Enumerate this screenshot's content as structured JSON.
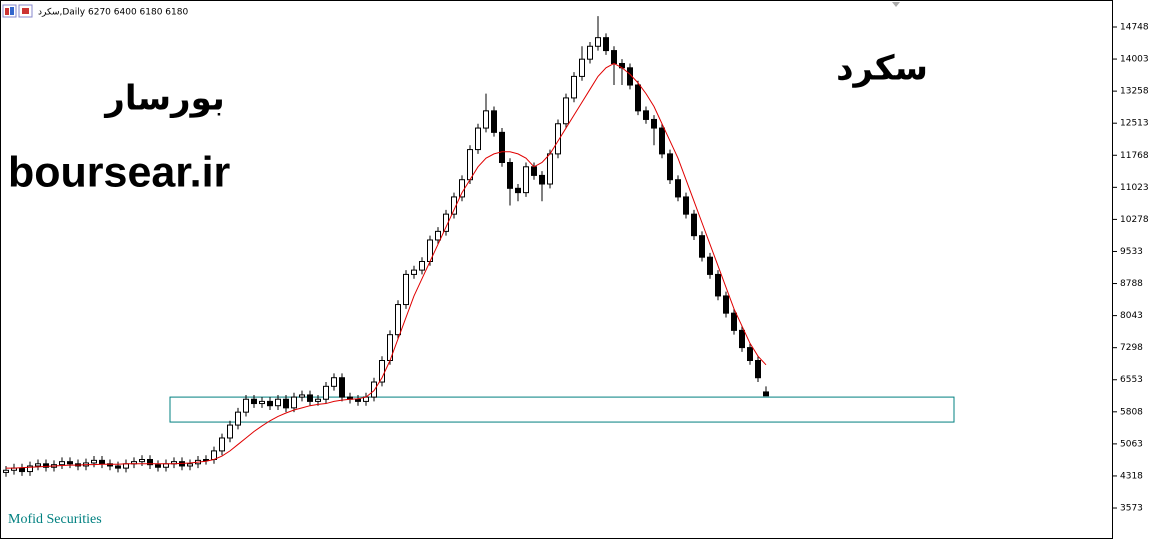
{
  "chart_data": {
    "type": "candlestick",
    "title": "سکرد,Daily  6270 6400 6180 6180",
    "watermarks": [
      "بورسار",
      "boursear.ir",
      "سکرد"
    ],
    "footer": "Mofid Securities",
    "ylim": [
      2830,
      15375
    ],
    "yticks": [
      3573,
      4318,
      5063,
      5808,
      6553,
      7298,
      8043,
      8788,
      9533,
      10278,
      11023,
      11768,
      12513,
      13258,
      14003,
      14748
    ],
    "open": [
      4400,
      4450,
      4500,
      4420,
      4550,
      4600,
      4520,
      4580,
      4650,
      4600,
      4550,
      4620,
      4680,
      4600,
      4550,
      4500,
      4600,
      4650,
      4700,
      4580,
      4520,
      4600,
      4650,
      4550,
      4600,
      4680,
      4700,
      4900,
      5200,
      5500,
      5800,
      6100,
      6000,
      6050,
      5950,
      6100,
      5900,
      6150,
      6200,
      6050,
      6100,
      6400,
      6600,
      6150,
      6100,
      6050,
      6150,
      6500,
      7000,
      7600,
      8300,
      9000,
      9100,
      9300,
      9800,
      10000,
      10400,
      10800,
      11200,
      11900,
      12400,
      12800,
      12300,
      11600,
      11000,
      10900,
      11500,
      11300,
      11100,
      11800,
      12500,
      13100,
      13600,
      14000,
      14300,
      14500,
      14200,
      13900,
      13800,
      13400,
      12800,
      12600,
      12400,
      11800,
      11200,
      10800,
      10400,
      9900,
      9400,
      9000,
      8500,
      8100,
      7700,
      7300,
      7000,
      6270
    ],
    "high": [
      4550,
      4600,
      4600,
      4650,
      4700,
      4700,
      4680,
      4750,
      4750,
      4700,
      4720,
      4780,
      4780,
      4700,
      4650,
      4700,
      4750,
      4800,
      4800,
      4680,
      4700,
      4750,
      4750,
      4700,
      4780,
      4800,
      5000,
      5300,
      5600,
      5900,
      6200,
      6200,
      6150,
      6150,
      6200,
      6200,
      6250,
      6300,
      6300,
      6200,
      6500,
      6700,
      6700,
      6250,
      6200,
      6250,
      6600,
      7100,
      7700,
      8400,
      9100,
      9200,
      9400,
      9900,
      10100,
      10500,
      10900,
      11300,
      12000,
      12500,
      13200,
      12900,
      12400,
      11700,
      11100,
      11600,
      11600,
      11400,
      11900,
      12600,
      13200,
      13700,
      14300,
      14400,
      15000,
      14600,
      14300,
      14000,
      13900,
      13500,
      12900,
      12700,
      12500,
      11900,
      11300,
      10900,
      10500,
      10000,
      9500,
      9100,
      8600,
      8200,
      7800,
      7400,
      7100,
      6400
    ],
    "low": [
      4300,
      4350,
      4320,
      4320,
      4450,
      4420,
      4420,
      4480,
      4500,
      4450,
      4450,
      4520,
      4500,
      4450,
      4400,
      4400,
      4500,
      4550,
      4480,
      4420,
      4420,
      4500,
      4450,
      4450,
      4500,
      4580,
      4600,
      4800,
      5100,
      5400,
      5700,
      5900,
      5900,
      5850,
      5850,
      5800,
      5800,
      6050,
      5950,
      5950,
      6000,
      6300,
      6050,
      6000,
      5950,
      5950,
      6050,
      6400,
      6900,
      7500,
      8200,
      8900,
      9000,
      9200,
      9700,
      9900,
      10300,
      10700,
      11100,
      11800,
      12300,
      12200,
      11500,
      10600,
      10700,
      10800,
      11200,
      10700,
      11000,
      11700,
      12400,
      13000,
      13500,
      13900,
      14200,
      14100,
      13400,
      13400,
      13300,
      12700,
      12500,
      12000,
      11700,
      11100,
      10700,
      10300,
      9800,
      9300,
      8900,
      8400,
      8000,
      7600,
      7200,
      6900,
      6500,
      6180
    ],
    "close": [
      4450,
      4500,
      4420,
      4550,
      4600,
      4520,
      4580,
      4650,
      4600,
      4550,
      4620,
      4680,
      4600,
      4550,
      4500,
      4600,
      4650,
      4700,
      4580,
      4520,
      4600,
      4650,
      4550,
      4600,
      4680,
      4700,
      4900,
      5200,
      5500,
      5800,
      6100,
      6000,
      6050,
      5950,
      6100,
      5900,
      6150,
      6200,
      6050,
      6100,
      6400,
      6600,
      6150,
      6100,
      6050,
      6150,
      6500,
      7000,
      7600,
      8300,
      9000,
      9100,
      9300,
      9800,
      10000,
      10400,
      10800,
      11200,
      11900,
      12400,
      12800,
      12300,
      11600,
      11000,
      10900,
      11500,
      11300,
      11100,
      11800,
      12500,
      13100,
      13600,
      14000,
      14300,
      14500,
      14200,
      13900,
      13800,
      13400,
      12800,
      12600,
      12400,
      11800,
      11200,
      10800,
      10400,
      9900,
      9400,
      9000,
      8500,
      8100,
      7700,
      7300,
      7000,
      6600,
      6180
    ],
    "ma": {
      "color": "#e00000",
      "values": [
        4500,
        4500,
        4510,
        4520,
        4530,
        4540,
        4550,
        4560,
        4570,
        4570,
        4580,
        4580,
        4590,
        4590,
        4590,
        4600,
        4600,
        4600,
        4600,
        4600,
        4600,
        4600,
        4610,
        4620,
        4640,
        4660,
        4700,
        4780,
        4900,
        5050,
        5200,
        5350,
        5480,
        5600,
        5700,
        5780,
        5850,
        5900,
        5950,
        5980,
        6000,
        6050,
        6080,
        6100,
        6110,
        6150,
        6300,
        6600,
        7000,
        7500,
        8000,
        8500,
        8900,
        9300,
        9700,
        10100,
        10500,
        10900,
        11200,
        11500,
        11700,
        11800,
        11850,
        11850,
        11800,
        11700,
        11500,
        11600,
        11800,
        12100,
        12400,
        12700,
        13000,
        13300,
        13600,
        13800,
        13900,
        13800,
        13650,
        13450,
        13200,
        12900,
        12500,
        12100,
        11700,
        11200,
        10700,
        10200,
        9700,
        9200,
        8700,
        8200,
        7800,
        7400,
        7100,
        6900
      ]
    },
    "zone": {
      "top": 6150,
      "bottom": 5570,
      "start": 21,
      "end": 119,
      "color": "#008080"
    }
  }
}
